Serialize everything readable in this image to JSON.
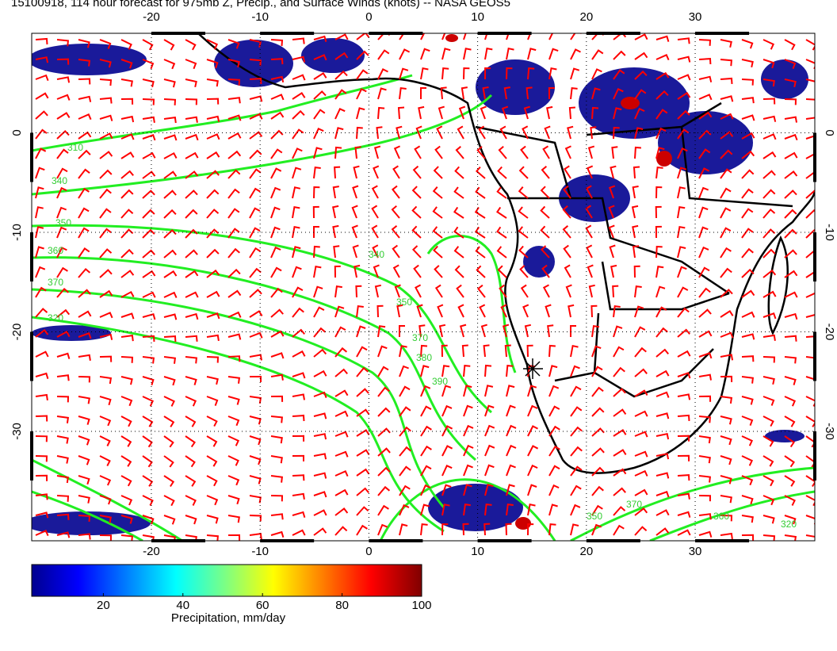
{
  "map": {
    "title": "15100918, 114 hour forecast for 975mb Z, Precip., and Surface Winds (knots) -- NASA GEOS5",
    "xlim": [
      -31,
      41
    ],
    "ylim": [
      -41,
      10
    ],
    "xticks": [
      -20,
      -10,
      0,
      10,
      20,
      30
    ],
    "yticks": [
      0,
      -10,
      -20,
      -30
    ],
    "contour_labels": [
      310,
      340,
      350,
      360,
      370,
      320,
      340,
      350,
      370,
      380,
      390,
      350,
      370,
      360,
      320
    ]
  },
  "colorbar": {
    "lim": [
      2,
      100
    ],
    "ticks": [
      20,
      40,
      60,
      80,
      100
    ],
    "label": "Precipitation, mm/day"
  }
}
